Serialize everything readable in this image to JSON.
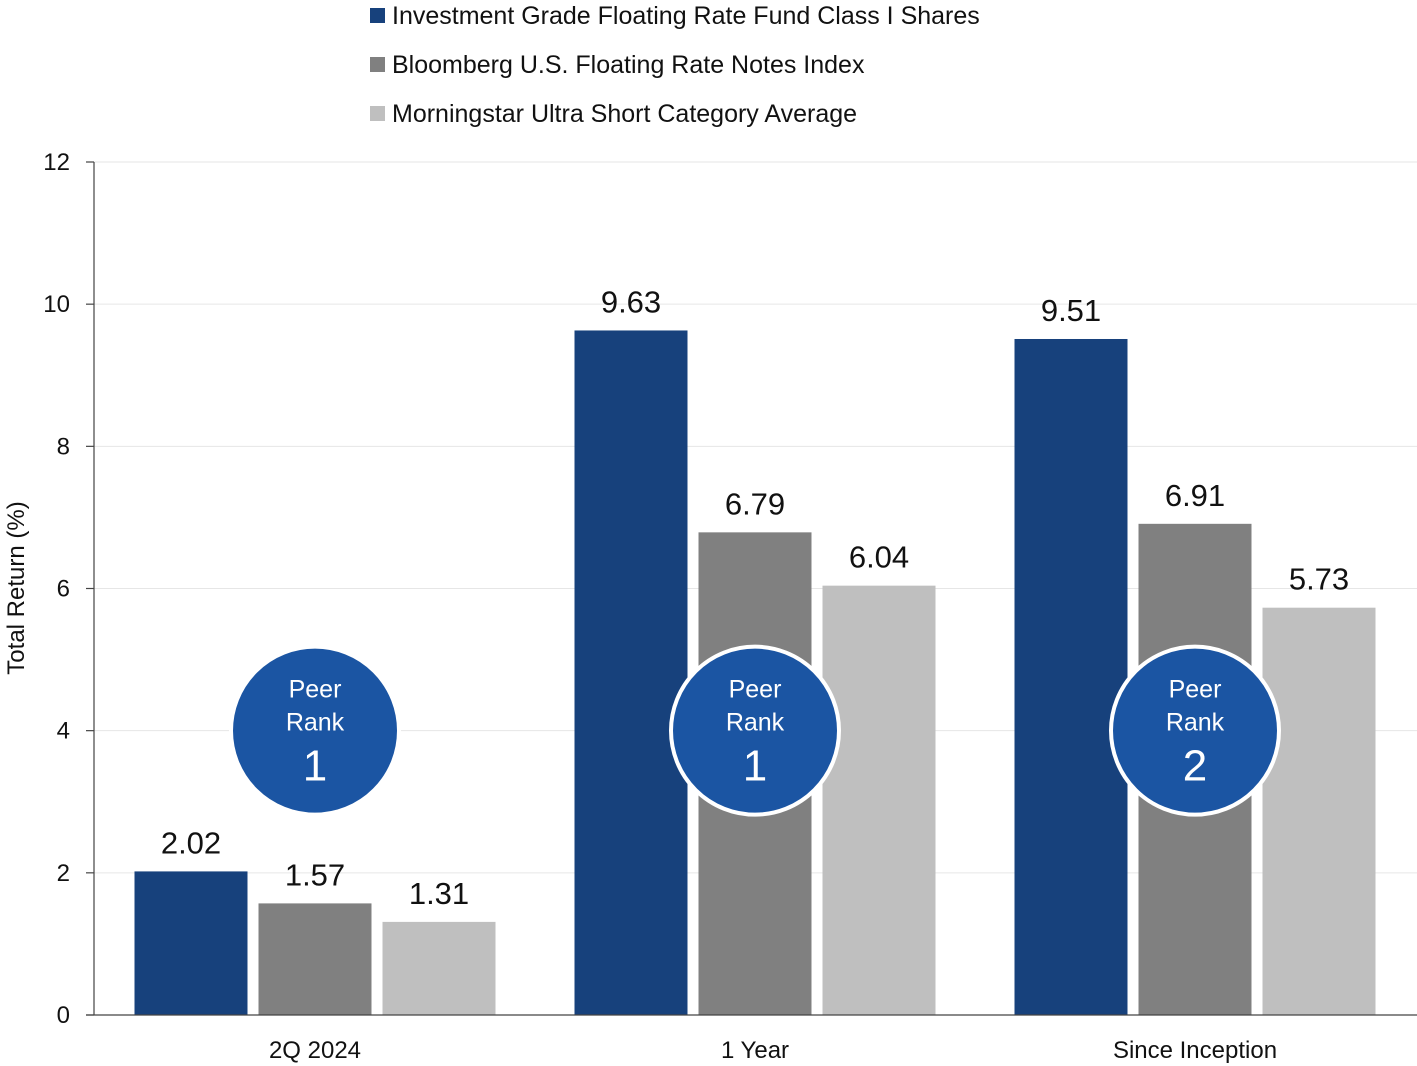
{
  "chart_data": {
    "type": "bar",
    "ylabel": "Total Return (%)",
    "ylim": [
      0,
      12
    ],
    "yticks": [
      0,
      2,
      4,
      6,
      8,
      10,
      12
    ],
    "grid": true,
    "legend_position": "top-center",
    "categories": [
      "2Q 2024",
      "1 Year",
      "Since Inception"
    ],
    "series": [
      {
        "name": "Investment Grade Floating Rate Fund Class I Shares",
        "color": "#17417c",
        "values": [
          2.02,
          9.63,
          9.51
        ],
        "labels": [
          "2.02",
          "9.63",
          "9.51"
        ]
      },
      {
        "name": "Bloomberg U.S. Floating Rate Notes Index",
        "color": "#808080",
        "values": [
          1.57,
          6.79,
          6.91
        ],
        "labels": [
          "1.57",
          "6.79",
          "6.91"
        ]
      },
      {
        "name": "Morningstar Ultra Short Category Average",
        "color": "#bfbfbf",
        "values": [
          1.31,
          6.04,
          5.73
        ],
        "labels": [
          "1.31",
          "6.04",
          "5.73"
        ]
      }
    ],
    "peer_rank": {
      "label_line1": "Peer",
      "label_line2": "Rank",
      "color": "#1b55a3",
      "center_value": 4,
      "ranks": [
        "1",
        "1",
        "2"
      ]
    }
  }
}
